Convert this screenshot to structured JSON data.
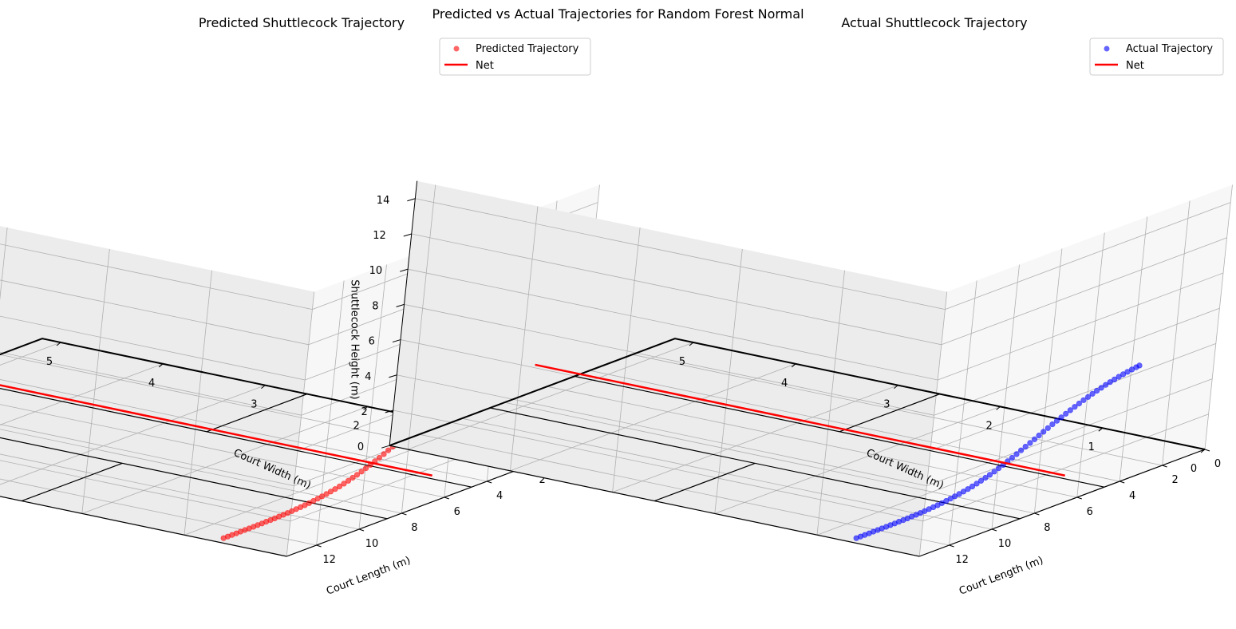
{
  "figure": {
    "suptitle": "Predicted vs Actual Trajectories for Random Forest Normal"
  },
  "colors": {
    "predicted": "#ff0000",
    "actual": "#0000ff",
    "net": "#ff0000",
    "court_lines": "#000000",
    "grid": "#b0b0b0",
    "pane": "#f2f2f2"
  },
  "chart_data": [
    {
      "type": "scatter3d",
      "title": "Predicted Shuttlecock Trajectory",
      "xlabel": "Court Length (m)",
      "ylabel": "Court Width (m)",
      "zlabel": "Shuttlecock Height (m)",
      "xlim": [
        0,
        13.4
      ],
      "ylim": [
        0,
        5.18
      ],
      "zlim": [
        0,
        15
      ],
      "x_ticks": [
        "0",
        "2",
        "4",
        "6",
        "8",
        "10",
        "12"
      ],
      "y_ticks": [
        "0",
        "1",
        "2",
        "3",
        "4",
        "5"
      ],
      "z_ticks": [
        "0",
        "2",
        "4",
        "6",
        "8",
        "10",
        "12",
        "14"
      ],
      "grid": true,
      "legend_position": "top-right",
      "series": [
        {
          "name": "Predicted Trajectory",
          "kind": "scatter",
          "color": "#ff0000",
          "alpha": 0.6,
          "x": [
            0.05,
            0.2,
            0.4,
            0.6,
            0.8,
            1.0,
            1.2,
            1.4,
            1.6,
            1.8,
            2.0,
            2.2,
            2.4,
            2.6,
            2.8,
            3.0,
            3.2,
            3.4,
            3.6,
            3.8,
            4.0,
            4.2,
            4.4,
            4.6,
            4.8,
            5.0,
            5.2,
            5.4,
            5.6,
            5.8,
            6.0,
            6.2,
            6.4,
            6.6,
            6.8,
            7.0,
            7.2,
            7.4,
            7.6,
            7.8,
            8.0,
            8.2,
            8.4,
            8.6,
            8.8,
            9.0,
            9.2,
            9.4,
            9.6,
            9.8,
            10.0,
            10.2,
            10.4,
            10.6,
            10.8,
            11.0,
            11.2,
            11.4,
            11.6,
            11.8,
            12.0,
            12.2,
            12.4,
            12.6,
            12.8,
            13.0
          ],
          "y": [
            0.7,
            0.7,
            0.7,
            0.7,
            0.7,
            0.7,
            0.7,
            0.7,
            0.7,
            0.7,
            0.7,
            0.7,
            0.7,
            0.7,
            0.7,
            0.7,
            0.7,
            0.7,
            0.7,
            0.7,
            0.7,
            0.7,
            0.7,
            0.7,
            0.7,
            0.7,
            0.7,
            0.7,
            0.7,
            0.7,
            0.7,
            0.7,
            0.7,
            0.7,
            0.7,
            0.7,
            0.7,
            0.7,
            0.7,
            0.7,
            0.7,
            0.7,
            0.7,
            0.7,
            0.7,
            0.7,
            0.7,
            0.7,
            0.7,
            0.7,
            0.7,
            0.7,
            0.7,
            0.7,
            0.7,
            0.7,
            0.7,
            0.7,
            0.7,
            0.7,
            0.7,
            0.7,
            0.7,
            0.7,
            0.7,
            0.7
          ],
          "z": [
            3.93,
            3.9,
            3.86,
            3.82,
            3.77,
            3.72,
            3.66,
            3.6,
            3.53,
            3.46,
            3.38,
            3.3,
            3.21,
            3.12,
            3.02,
            2.92,
            2.82,
            2.71,
            2.6,
            2.49,
            2.38,
            2.26,
            2.14,
            2.02,
            1.9,
            1.78,
            1.66,
            1.54,
            1.42,
            1.3,
            1.19,
            1.08,
            0.98,
            0.88,
            0.79,
            0.71,
            0.63,
            0.56,
            0.49,
            0.43,
            0.38,
            0.33,
            0.29,
            0.25,
            0.21,
            0.18,
            0.15,
            0.13,
            0.11,
            0.09,
            0.07,
            0.06,
            0.05,
            0.04,
            0.03,
            0.03,
            0.02,
            0.02,
            0.01,
            0.01,
            0.01,
            0.01,
            0.0,
            0.0,
            0.0,
            0.0
          ]
        },
        {
          "name": "Net",
          "kind": "line",
          "color": "#ff0000",
          "x": [
            6.7,
            6.7
          ],
          "y": [
            0,
            5.18
          ],
          "z": [
            1.55,
            1.55
          ]
        }
      ]
    },
    {
      "type": "scatter3d",
      "title": "Actual Shuttlecock Trajectory",
      "xlabel": "Court Length (m)",
      "ylabel": "Court Width (m)",
      "zlabel": "Shuttlecock Height (m)",
      "xlim": [
        0,
        13.4
      ],
      "ylim": [
        0,
        5.18
      ],
      "zlim": [
        0,
        15
      ],
      "x_ticks": [
        "0",
        "2",
        "4",
        "6",
        "8",
        "10",
        "12"
      ],
      "y_ticks": [
        "0",
        "1",
        "2",
        "3",
        "4",
        "5"
      ],
      "z_ticks": [
        "0",
        "2",
        "4",
        "6",
        "8",
        "10",
        "12",
        "14"
      ],
      "grid": true,
      "legend_position": "top-right",
      "series": [
        {
          "name": "Actual Trajectory",
          "kind": "scatter",
          "color": "#0000ff",
          "alpha": 0.6,
          "x": [
            0.05,
            0.2,
            0.4,
            0.6,
            0.8,
            1.0,
            1.2,
            1.4,
            1.6,
            1.8,
            2.0,
            2.2,
            2.4,
            2.6,
            2.8,
            3.0,
            3.2,
            3.4,
            3.6,
            3.8,
            4.0,
            4.2,
            4.4,
            4.6,
            4.8,
            5.0,
            5.2,
            5.4,
            5.6,
            5.8,
            6.0,
            6.2,
            6.4,
            6.6,
            6.8,
            7.0,
            7.2,
            7.4,
            7.6,
            7.8,
            8.0,
            8.2,
            8.4,
            8.6,
            8.8,
            9.0,
            9.2,
            9.4,
            9.6,
            9.8,
            10.0,
            10.2,
            10.4,
            10.6,
            10.8,
            11.0,
            11.2,
            11.4,
            11.6,
            11.8,
            12.0,
            12.2,
            12.4,
            12.6,
            12.8,
            13.0
          ],
          "y": [
            0.7,
            0.7,
            0.7,
            0.7,
            0.7,
            0.7,
            0.7,
            0.7,
            0.7,
            0.7,
            0.7,
            0.7,
            0.7,
            0.7,
            0.7,
            0.7,
            0.7,
            0.7,
            0.7,
            0.7,
            0.7,
            0.7,
            0.7,
            0.7,
            0.7,
            0.7,
            0.7,
            0.7,
            0.7,
            0.7,
            0.7,
            0.7,
            0.7,
            0.7,
            0.7,
            0.7,
            0.7,
            0.7,
            0.7,
            0.7,
            0.7,
            0.7,
            0.7,
            0.7,
            0.7,
            0.7,
            0.7,
            0.7,
            0.7,
            0.7,
            0.7,
            0.7,
            0.7,
            0.7,
            0.7,
            0.7,
            0.7,
            0.7,
            0.7,
            0.7,
            0.7,
            0.7,
            0.7,
            0.7,
            0.7,
            0.7
          ],
          "z": [
            3.93,
            3.9,
            3.86,
            3.82,
            3.77,
            3.72,
            3.66,
            3.6,
            3.53,
            3.46,
            3.38,
            3.3,
            3.21,
            3.12,
            3.02,
            2.92,
            2.82,
            2.71,
            2.6,
            2.49,
            2.38,
            2.26,
            2.14,
            2.02,
            1.9,
            1.78,
            1.66,
            1.54,
            1.42,
            1.3,
            1.19,
            1.08,
            0.98,
            0.88,
            0.79,
            0.71,
            0.63,
            0.56,
            0.49,
            0.43,
            0.38,
            0.33,
            0.29,
            0.25,
            0.21,
            0.18,
            0.15,
            0.13,
            0.11,
            0.09,
            0.07,
            0.06,
            0.05,
            0.04,
            0.03,
            0.03,
            0.02,
            0.02,
            0.01,
            0.01,
            0.01,
            0.01,
            0.0,
            0.0,
            0.0,
            0.0
          ]
        },
        {
          "name": "Net",
          "kind": "line",
          "color": "#ff0000",
          "x": [
            6.7,
            6.7
          ],
          "y": [
            0,
            5.18
          ],
          "z": [
            1.55,
            1.55
          ]
        }
      ]
    }
  ]
}
